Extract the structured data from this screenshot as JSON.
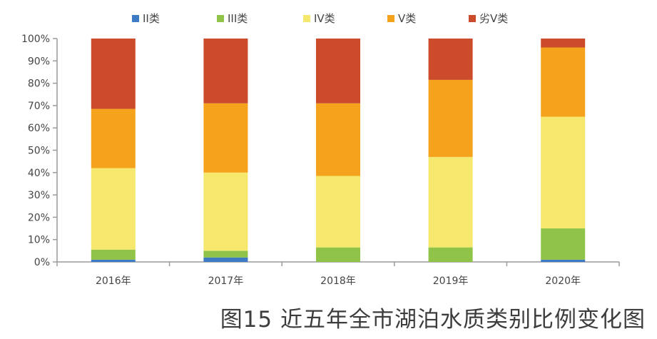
{
  "caption": "图15 近五年全市湖泊水质类别比例变化图",
  "chart_data": {
    "type": "bar",
    "stacked": true,
    "title": "",
    "xlabel": "",
    "ylabel": "",
    "ylim": [
      0,
      100
    ],
    "y_ticks": [
      "0%",
      "10%",
      "20%",
      "30%",
      "40%",
      "50%",
      "60%",
      "70%",
      "80%",
      "90%",
      "100%"
    ],
    "categories": [
      "2016年",
      "2017年",
      "2018年",
      "2019年",
      "2020年"
    ],
    "legend_position": "top",
    "grid": false,
    "series": [
      {
        "name": "II类",
        "color": "#3d7bc4",
        "values": [
          1,
          2,
          0,
          0,
          1
        ]
      },
      {
        "name": "III类",
        "color": "#8fc448",
        "values": [
          4.5,
          3,
          6.5,
          6.5,
          14
        ]
      },
      {
        "name": "IV类",
        "color": "#f6e86c",
        "values": [
          36.5,
          35,
          32,
          40.5,
          50
        ]
      },
      {
        "name": "V类",
        "color": "#f5a21d",
        "values": [
          26.5,
          31,
          32.5,
          34.5,
          31
        ]
      },
      {
        "name": "劣V类",
        "color": "#cb4b2a",
        "values": [
          31.5,
          29,
          29,
          18.5,
          4
        ]
      }
    ]
  }
}
